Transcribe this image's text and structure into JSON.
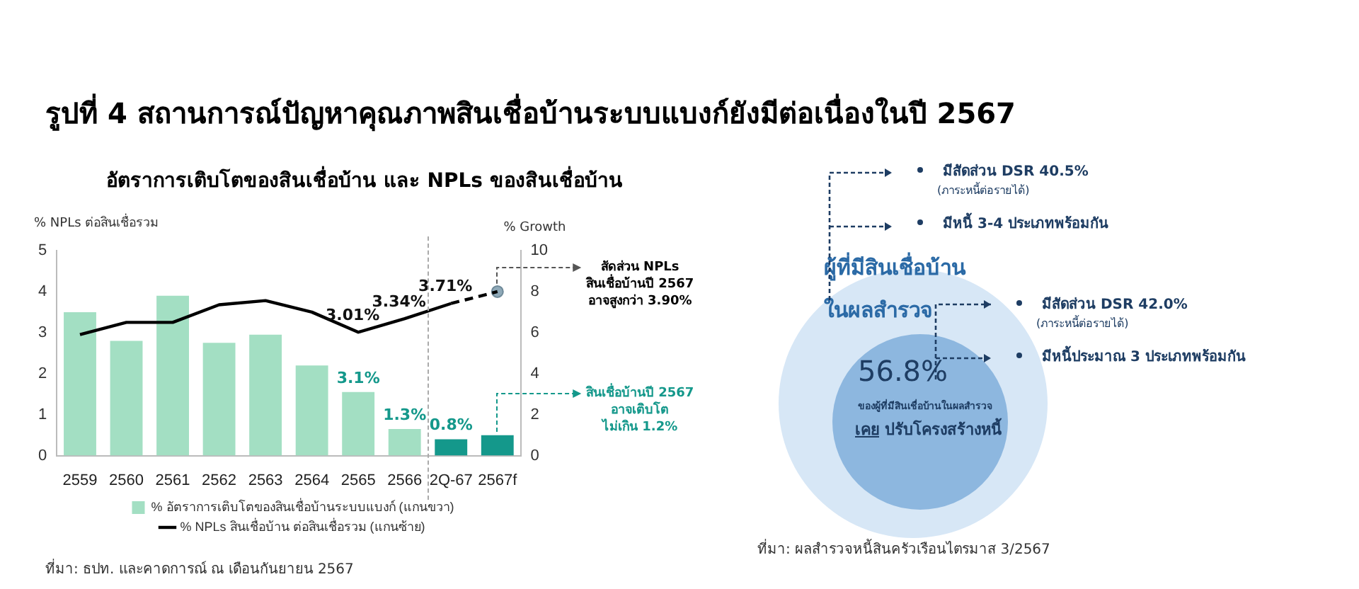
{
  "chart_data": [
    {
      "type": "bar",
      "title": "รูปที่ 4 สถานการณ์ปัญหาคุณภาพสินเชื่อบ้านระบบแบงก์ยังมีต่อเนื่องในปี 2567",
      "subtitle": "อัตราการเติบโตของสินเชื่อบ้าน และ NPLs ของสินเชื่อบ้าน",
      "ylabel": "% NPLs ต่อสินเชื่อรวม",
      "y2label": "% Growth",
      "categories": [
        "2559",
        "2560",
        "2561",
        "2562",
        "2563",
        "2564",
        "2565",
        "2566",
        "2Q-67",
        "2567f"
      ],
      "ylim": [
        0,
        5
      ],
      "yticks": [
        0,
        1,
        2,
        3,
        4,
        5
      ],
      "y2lim": [
        0,
        10
      ],
      "y2ticks": [
        0,
        2,
        4,
        6,
        8,
        10
      ],
      "grid": false,
      "legend": "bottom",
      "annotations": [
        "สัดส่วน NPLs\nสินเชื่อบ้านปี 2567\nอาจสูงกว่า 3.90%",
        "สินเชื่อบ้านปี 2567\nอาจเติบโต\nไม่เกิน 1.2%",
        "ที่มา: ธปท. และคาดการณ์ ณ เดือนกันยายน 2567"
      ],
      "series": [
        {
          "name": "% อัตราการเติบโตของสินเชื่อบ้านระบบแบงก์ (แกนขวา)",
          "type": "bar",
          "axis": "y2",
          "colors": [
            "#a3dfc3",
            "#a3dfc3",
            "#a3dfc3",
            "#a3dfc3",
            "#a3dfc3",
            "#a3dfc3",
            "#a3dfc3",
            "#a3dfc3",
            "#14988b",
            "#14988b"
          ],
          "values": [
            7.0,
            5.6,
            7.8,
            5.5,
            5.9,
            4.4,
            3.1,
            1.3,
            0.8,
            1.0
          ],
          "value_labels": [
            null,
            null,
            null,
            null,
            null,
            null,
            "3.1%",
            "1.3%",
            "0.8%",
            null
          ]
        },
        {
          "name": "% NPLs สินเชื่อบ้าน ต่อสินเชื่อรวม (แกนซ้าย)",
          "type": "line",
          "axis": "y",
          "color": "#000000",
          "line_style": "solid",
          "marker": "none",
          "values": [
            2.95,
            3.25,
            3.25,
            3.68,
            3.78,
            3.5,
            3.01,
            3.34,
            3.71,
            null
          ],
          "value_labels": [
            null,
            null,
            null,
            null,
            null,
            null,
            "3.01%",
            "3.34%",
            "3.71%",
            null
          ]
        },
        {
          "type": "line",
          "axis": "y",
          "color": "#000000",
          "line_style": "dashed",
          "marker": "none",
          "values": [
            null,
            null,
            null,
            null,
            null,
            null,
            null,
            null,
            3.71,
            4.0
          ]
        },
        {
          "type": "scatter",
          "axis": "y",
          "color": "#8fa9b8",
          "marker": "circle",
          "values": [
            null,
            null,
            null,
            null,
            null,
            null,
            null,
            null,
            null,
            4.0
          ]
        }
      ]
    },
    {
      "type": "other",
      "title": "ผู้ที่มีสินเชื่อบ้าน\nในผลสำรวจ",
      "annotations": [
        "มีสัดส่วน DSR 40.5%",
        "(ภาระหนี้ต่อรายได้)",
        "มีหนี้ 3-4 ประเภทพร้อมกัน",
        "มีสัดส่วน DSR 42.0%",
        "(ภาระหนี้ต่อรายได้)",
        "มีหนี้ประมาณ 3 ประเภทพร้อมกัน",
        "56.8%",
        "ของผู้ที่มีสินเชื่อบ้านในผลสำรวจ",
        "เคย ปรับโครงสร้างหนี้",
        "ที่มา: ผลสำรวจหนี้สินครัวเรือนไตรมาส 3/2567"
      ]
    }
  ]
}
